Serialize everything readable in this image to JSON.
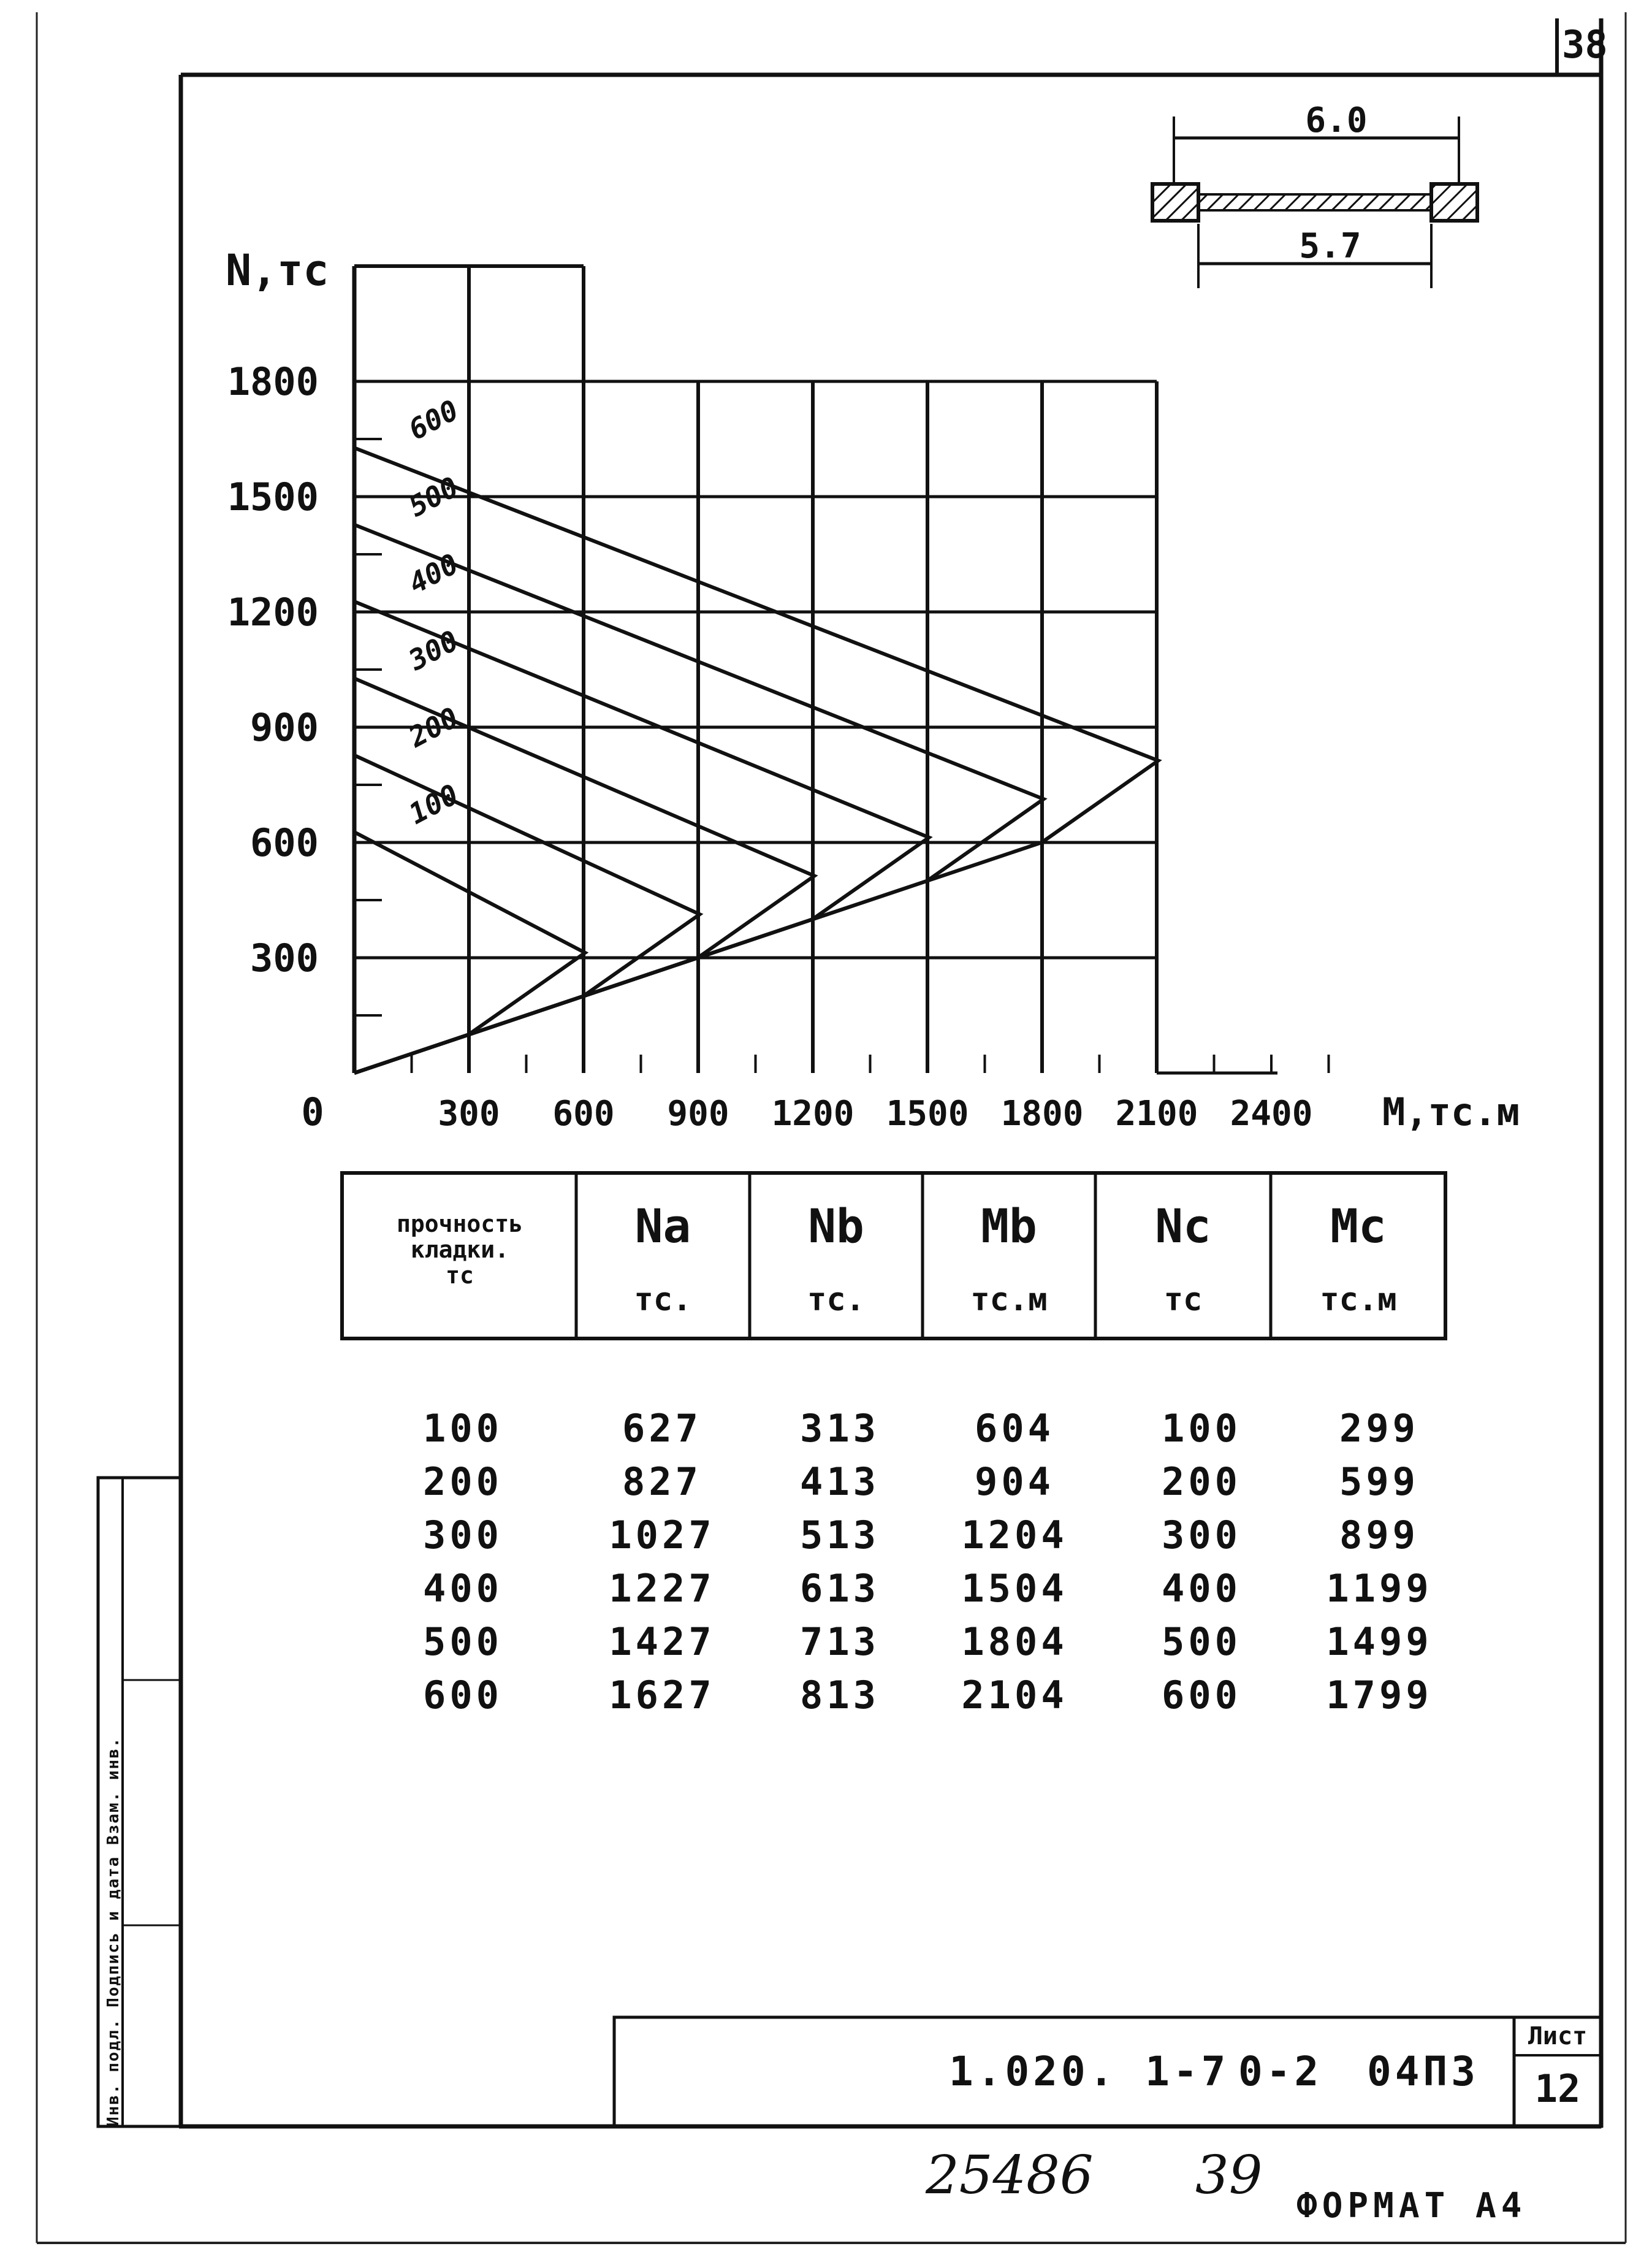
{
  "sheet_corner_number": "38",
  "section_sketch": {
    "top_dim": "6.0",
    "bottom_dim": "5.7"
  },
  "chart_data": {
    "type": "line",
    "ylabel": "N,тс",
    "xlabel": "М,тс.м",
    "origin_label": "0",
    "xlim": [
      0,
      2700
    ],
    "ylim": [
      0,
      2100
    ],
    "x_ticks": [
      300,
      600,
      900,
      1200,
      1500,
      1800,
      2100,
      2400
    ],
    "x_tick_labels": [
      "300",
      "600",
      "900",
      "1200",
      "1500",
      "1800",
      "2100",
      "2400"
    ],
    "y_ticks": [
      300,
      600,
      900,
      1200,
      1500,
      1800
    ],
    "y_tick_labels": [
      "300",
      "600",
      "900",
      "1200",
      "1500",
      "1800"
    ],
    "grid": true,
    "series": [
      {
        "name": "100",
        "points": [
          [
            0,
            627
          ],
          [
            604,
            313
          ],
          [
            299,
            100
          ],
          [
            0,
            0
          ]
        ]
      },
      {
        "name": "200",
        "points": [
          [
            0,
            827
          ],
          [
            904,
            413
          ],
          [
            599,
            200
          ],
          [
            0,
            0
          ]
        ]
      },
      {
        "name": "300",
        "points": [
          [
            0,
            1027
          ],
          [
            1204,
            513
          ],
          [
            899,
            300
          ],
          [
            0,
            0
          ]
        ]
      },
      {
        "name": "400",
        "points": [
          [
            0,
            1227
          ],
          [
            1504,
            613
          ],
          [
            1199,
            400
          ],
          [
            0,
            0
          ]
        ]
      },
      {
        "name": "500",
        "points": [
          [
            0,
            1427
          ],
          [
            1804,
            713
          ],
          [
            1499,
            500
          ],
          [
            0,
            0
          ]
        ]
      },
      {
        "name": "600",
        "points": [
          [
            0,
            1627
          ],
          [
            2104,
            813
          ],
          [
            1799,
            600
          ],
          [
            0,
            0
          ]
        ]
      }
    ]
  },
  "table": {
    "header_first": [
      "прочность",
      "кладки.",
      "тс"
    ],
    "columns": [
      {
        "symbol": "Na",
        "unit": "тс."
      },
      {
        "symbol": "Nb",
        "unit": "тс."
      },
      {
        "symbol": "Mb",
        "unit": "тс.м"
      },
      {
        "symbol": "Nc",
        "unit": "тс"
      },
      {
        "symbol": "Mc",
        "unit": "тс.м"
      }
    ],
    "rows": [
      [
        "100",
        "627",
        "313",
        "604",
        "100",
        "299"
      ],
      [
        "200",
        "827",
        "413",
        "904",
        "200",
        "599"
      ],
      [
        "300",
        "1027",
        "513",
        "1204",
        "300",
        "899"
      ],
      [
        "400",
        "1227",
        "613",
        "1504",
        "400",
        "1199"
      ],
      [
        "500",
        "1427",
        "713",
        "1804",
        "500",
        "1499"
      ],
      [
        "600",
        "1627",
        "813",
        "2104",
        "600",
        "1799"
      ]
    ]
  },
  "side_stamp": "Инв. подл. Подпись и дата Взам. инв.",
  "title_block": {
    "code": "1.020. 1-7",
    "issue": "0-2",
    "doc": "04ПЗ",
    "sheet_label": "Лист",
    "sheet_number": "12"
  },
  "footer": {
    "handwritten_number": "25486",
    "handwritten_page": "39",
    "format_label": "ФОРМАТ А4"
  }
}
